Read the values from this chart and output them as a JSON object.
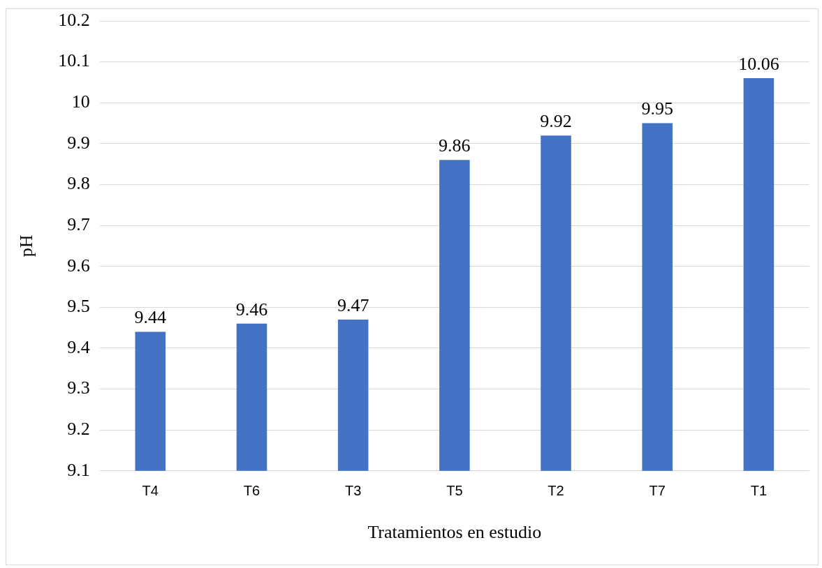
{
  "chart_data": {
    "type": "bar",
    "xlabel": "Tratamientos en estudio",
    "ylabel": "pH",
    "categories": [
      "T4",
      "T6",
      "T3",
      "T5",
      "T2",
      "T7",
      "T1"
    ],
    "values": [
      9.44,
      9.46,
      9.47,
      9.86,
      9.92,
      9.95,
      10.06
    ],
    "color": "#4472c4",
    "ylim": [
      9.1,
      10.2
    ],
    "yticks": [
      9.1,
      9.2,
      9.3,
      9.4,
      9.5,
      9.6,
      9.7,
      9.8,
      9.9,
      10,
      10.1,
      10.2
    ],
    "grid": "y",
    "legend": false,
    "data_labels": true
  }
}
